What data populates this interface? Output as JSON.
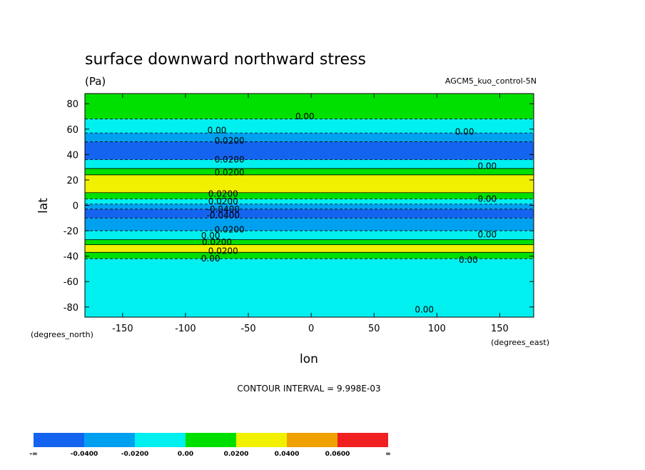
{
  "chart_data": {
    "type": "heatmap",
    "title": "surface downward northward stress",
    "units": "(Pa)",
    "dataset_label": "AGCM5_kuo_control-5N",
    "xlabel": "lon",
    "ylabel": "lat",
    "x_units_label": "(degrees_east)",
    "y_units_label": "(degrees_north)",
    "x_ticks": [
      -150,
      -100,
      -50,
      0,
      50,
      100,
      150
    ],
    "x_tick_labels": [
      "-150",
      "-100",
      "-50",
      "0",
      "50",
      "100",
      "150"
    ],
    "y_ticks": [
      80,
      60,
      40,
      20,
      0,
      -20,
      -40,
      -60,
      -80
    ],
    "y_tick_labels": [
      "80",
      "60",
      "40",
      "20",
      "0",
      "-20",
      "-40",
      "-60",
      "-80"
    ],
    "xlim": [
      -180,
      177
    ],
    "ylim": [
      -88,
      88
    ],
    "contour_interval_text": "CONTOUR INTERVAL = 9.998E-03",
    "colorbar": {
      "labels": [
        "-∞",
        "-0.0400",
        "-0.0200",
        "0.00",
        "0.0200",
        "0.0400",
        "0.0600",
        "∞"
      ],
      "colors": [
        "#1464f0",
        "#00a0f0",
        "#00f0f0",
        "#00e000",
        "#f0f000",
        "#f0a000",
        "#f02020"
      ]
    },
    "zonal_bands": [
      {
        "lat_from": 88,
        "lat_to": 68,
        "level": "0.00 to 0.0200",
        "color": "#00e000"
      },
      {
        "lat_from": 68,
        "lat_to": 57,
        "level": "-0.0200 to 0.00",
        "color": "#00f0f0"
      },
      {
        "lat_from": 57,
        "lat_to": 50,
        "level": "-0.0400 to -0.0200",
        "color": "#00a0f0"
      },
      {
        "lat_from": 50,
        "lat_to": 36,
        "level": "below -0.0400",
        "color": "#1464f0"
      },
      {
        "lat_from": 36,
        "lat_to": 29,
        "level": "-0.0200 to 0.00",
        "color": "#00f0f0"
      },
      {
        "lat_from": 29,
        "lat_to": 24,
        "level": "0.00 to 0.0200",
        "color": "#00e000"
      },
      {
        "lat_from": 24,
        "lat_to": 10,
        "level": "0.0200 to 0.0400",
        "color": "#f0f000"
      },
      {
        "lat_from": 10,
        "lat_to": 5,
        "level": "0.00 to 0.0200",
        "color": "#00e000"
      },
      {
        "lat_from": 5,
        "lat_to": 1,
        "level": "-0.0200 to 0.00",
        "color": "#00f0f0"
      },
      {
        "lat_from": 1,
        "lat_to": -3,
        "level": "-0.0400 to -0.0200",
        "color": "#00a0f0"
      },
      {
        "lat_from": -3,
        "lat_to": -10,
        "level": "below -0.0400",
        "color": "#1464f0"
      },
      {
        "lat_from": -10,
        "lat_to": -20,
        "level": "-0.0400 to -0.0200",
        "color": "#00a0f0"
      },
      {
        "lat_from": -20,
        "lat_to": -27,
        "level": "-0.0200 to 0.00",
        "color": "#00f0f0"
      },
      {
        "lat_from": -27,
        "lat_to": -31,
        "level": "0.00 to 0.0200",
        "color": "#00e000"
      },
      {
        "lat_from": -31,
        "lat_to": -37,
        "level": "0.0200 to 0.0400",
        "color": "#f0f000"
      },
      {
        "lat_from": -37,
        "lat_to": -42,
        "level": "0.00 to 0.0200",
        "color": "#00e000"
      },
      {
        "lat_from": -42,
        "lat_to": -88,
        "level": "-0.0200 to 0.00",
        "color": "#00f0f0"
      }
    ],
    "contour_labels": [
      {
        "text": "0.00",
        "lon": -5,
        "lat": 70
      },
      {
        "text": "0.00",
        "lon": -75,
        "lat": 59
      },
      {
        "text": "0.00",
        "lon": 122,
        "lat": 58
      },
      {
        "text": "0.0200",
        "lon": -65,
        "lat": 51
      },
      {
        "text": "0.0200",
        "lon": -65,
        "lat": 36
      },
      {
        "text": "0.0200",
        "lon": -65,
        "lat": 26
      },
      {
        "text": "0.00",
        "lon": 140,
        "lat": 31
      },
      {
        "text": "0.0200",
        "lon": -70,
        "lat": 9
      },
      {
        "text": "0.00",
        "lon": 140,
        "lat": 5
      },
      {
        "text": "0.0200",
        "lon": -70,
        "lat": 3
      },
      {
        "text": "-0.0400",
        "lon": -70,
        "lat": -3
      },
      {
        "text": "-0.0400",
        "lon": -70,
        "lat": -8
      },
      {
        "text": "0.0200",
        "lon": -65,
        "lat": -19
      },
      {
        "text": "0.00",
        "lon": -80,
        "lat": -24
      },
      {
        "text": "0.00",
        "lon": 140,
        "lat": -23
      },
      {
        "text": "0.0200",
        "lon": -75,
        "lat": -29
      },
      {
        "text": "0.0200",
        "lon": -70,
        "lat": -36
      },
      {
        "text": "0.00",
        "lon": -80,
        "lat": -42
      },
      {
        "text": "0.00",
        "lon": 125,
        "lat": -43
      },
      {
        "text": "0.00",
        "lon": 90,
        "lat": -82
      }
    ]
  }
}
